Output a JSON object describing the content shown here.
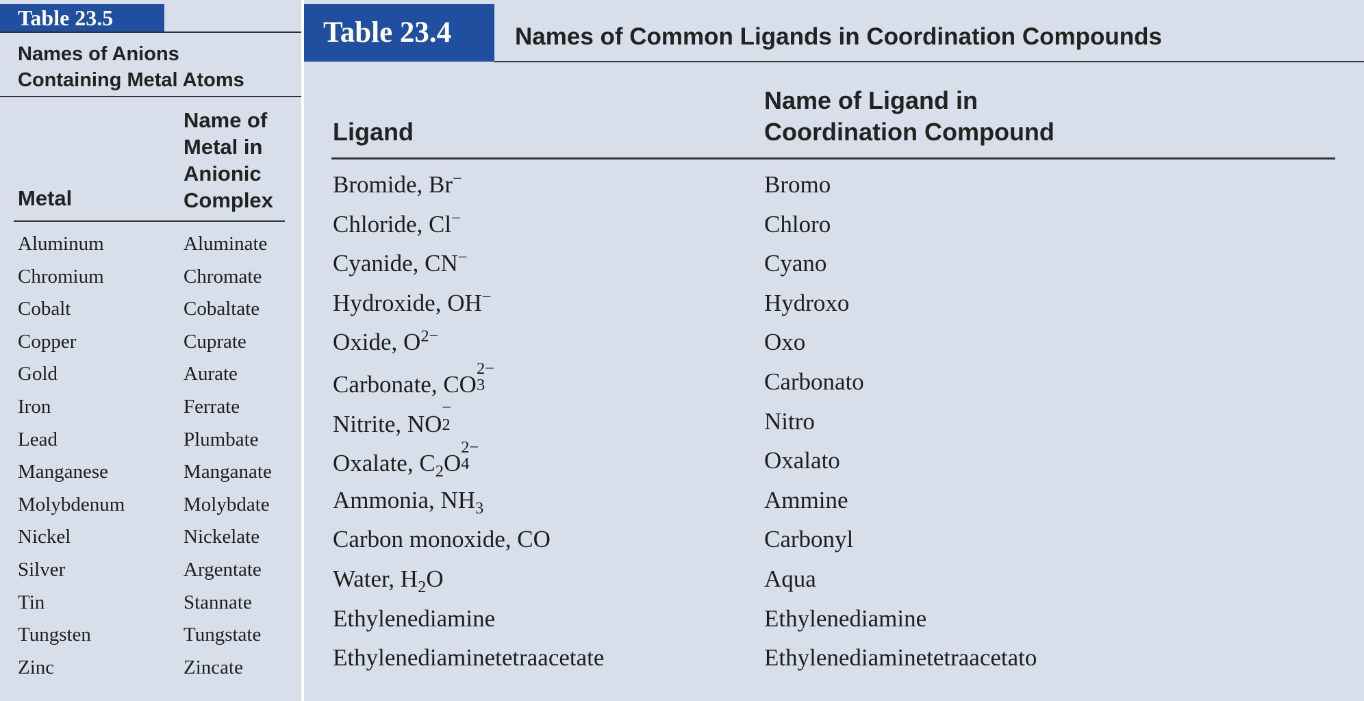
{
  "table_23_5": {
    "tag": "Table 23.5",
    "caption_line1": "Names of Anions",
    "caption_line2": "Containing Metal Atoms",
    "col_metal": "Metal",
    "col_name_lines": [
      "Name of",
      "Metal in",
      "Anionic",
      "Complex"
    ],
    "rows": [
      {
        "metal": "Aluminum",
        "name": "Aluminate"
      },
      {
        "metal": "Chromium",
        "name": "Chromate"
      },
      {
        "metal": "Cobalt",
        "name": "Cobaltate"
      },
      {
        "metal": "Copper",
        "name": "Cuprate"
      },
      {
        "metal": "Gold",
        "name": "Aurate"
      },
      {
        "metal": "Iron",
        "name": "Ferrate"
      },
      {
        "metal": "Lead",
        "name": "Plumbate"
      },
      {
        "metal": "Manganese",
        "name": "Manganate"
      },
      {
        "metal": "Molybdenum",
        "name": "Molybdate"
      },
      {
        "metal": "Nickel",
        "name": "Nickelate"
      },
      {
        "metal": "Silver",
        "name": "Argentate"
      },
      {
        "metal": "Tin",
        "name": "Stannate"
      },
      {
        "metal": "Tungsten",
        "name": "Tungstate"
      },
      {
        "metal": "Zinc",
        "name": "Zincate"
      }
    ]
  },
  "table_23_4": {
    "tag": "Table 23.4",
    "title": "Names of Common Ligands in Coordination Compounds",
    "col_ligand": "Ligand",
    "col_name_line1": "Name of Ligand in",
    "col_name_line2": "Coordination Compound",
    "rows": [
      {
        "ligand": "Bromide, Br<sup>−</sup>",
        "name": "Bromo"
      },
      {
        "ligand": "Chloride, Cl<sup>−</sup>",
        "name": "Chloro"
      },
      {
        "ligand": "Cyanide, CN<sup>−</sup>",
        "name": "Cyano"
      },
      {
        "ligand": "Hydroxide, OH<sup>−</sup>",
        "name": "Hydroxo"
      },
      {
        "ligand": "Oxide, O<sup>2−</sup>",
        "name": "Oxo"
      },
      {
        "ligand": "Carbonate, CO<span class=\"ss\"><span class=\"up\">2−</span><span class=\"dn\">3</span></span>",
        "name": "Carbonato"
      },
      {
        "ligand": "Nitrite, NO<span class=\"ss\"><span class=\"up\">−</span><span class=\"dn\">2</span></span>",
        "name": "Nitro"
      },
      {
        "ligand": "Oxalate, C<sub>2</sub>O<span class=\"ss\"><span class=\"up\">2−</span><span class=\"dn\">4</span></span>",
        "name": "Oxalato"
      },
      {
        "ligand": "Ammonia, NH<sub>3</sub>",
        "name": "Ammine"
      },
      {
        "ligand": "Carbon monoxide, CO",
        "name": "Carbonyl"
      },
      {
        "ligand": "Water, H<sub>2</sub>O",
        "name": "Aqua"
      },
      {
        "ligand": "Ethylenediamine",
        "name": "Ethylenediamine"
      },
      {
        "ligand": "Ethylenediaminetetraacetate",
        "name": "Ethylenediaminetetraacetato"
      }
    ]
  },
  "colors": {
    "panel_bg": "#d9dfea",
    "tag_bg": "#1f4f9e",
    "tag_text": "#ffffff"
  }
}
